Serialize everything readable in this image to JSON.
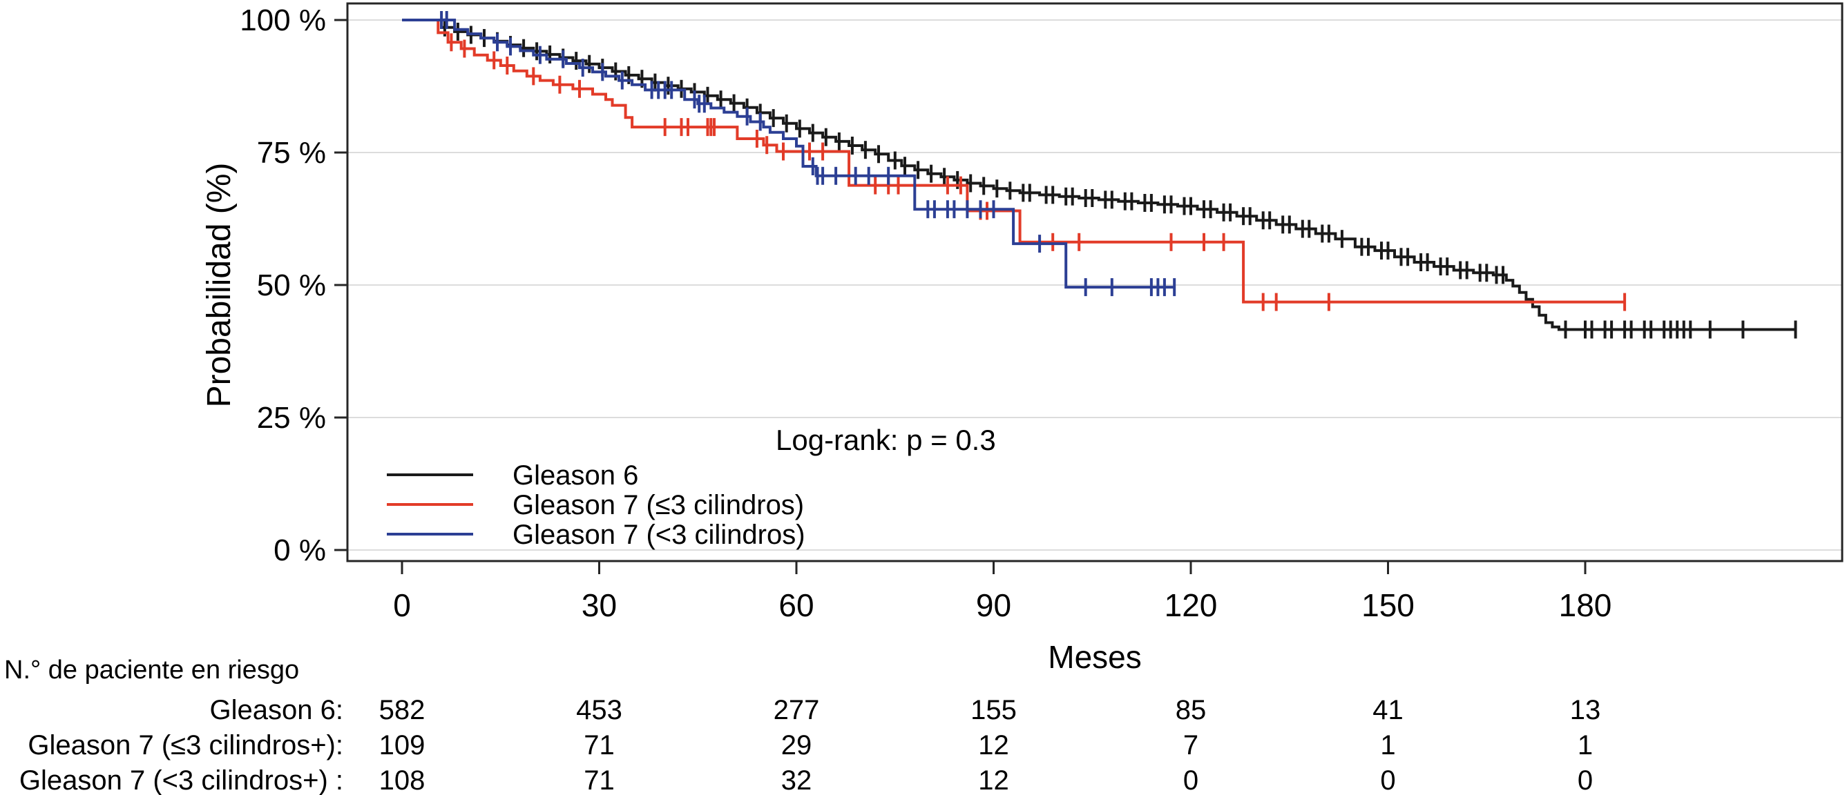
{
  "chart_data": {
    "type": "line",
    "subtype": "kaplan-meier-step-curves",
    "title": "",
    "xlabel": "Meses",
    "ylabel": "Probabilidad (%)",
    "annotation": "Log-rank: p = 0.3",
    "xlim": [
      0,
      219
    ],
    "ylim": [
      0,
      100
    ],
    "xticks": [
      0,
      30,
      60,
      90,
      120,
      150,
      180
    ],
    "xtick_labels": [
      "0",
      "30",
      "60",
      "90",
      "120",
      "150",
      "180"
    ],
    "yticks": [
      0,
      25,
      50,
      75,
      100
    ],
    "ytick_labels": [
      "0 %",
      "25 %",
      "50 %",
      "75 %",
      "100 %"
    ],
    "grid": "horizontal",
    "grid_color": "#dcdcdc",
    "axis_color": "#262626",
    "legend_position": "inside-bottom-left",
    "series": [
      {
        "name": "Gleason 6",
        "color": "#1a1a1a",
        "steps": [
          [
            0,
            100
          ],
          [
            6,
            98.6
          ],
          [
            8,
            97.8
          ],
          [
            10,
            97.2
          ],
          [
            12,
            96.6
          ],
          [
            14,
            96.0
          ],
          [
            16,
            95.3
          ],
          [
            18,
            94.7
          ],
          [
            20,
            94.1
          ],
          [
            22,
            93.5
          ],
          [
            24,
            92.9
          ],
          [
            26,
            92.3
          ],
          [
            28,
            91.7
          ],
          [
            30,
            91.0
          ],
          [
            32,
            90.3
          ],
          [
            34,
            89.6
          ],
          [
            36,
            88.9
          ],
          [
            38,
            88.2
          ],
          [
            40,
            87.6
          ],
          [
            42,
            87.0
          ],
          [
            44,
            86.4
          ],
          [
            46,
            85.7
          ],
          [
            48,
            85.0
          ],
          [
            50,
            84.3
          ],
          [
            52,
            83.5
          ],
          [
            54,
            82.5
          ],
          [
            56,
            81.5
          ],
          [
            58,
            80.5
          ],
          [
            60,
            79.5
          ],
          [
            62,
            78.7
          ],
          [
            64,
            77.9
          ],
          [
            66,
            77.1
          ],
          [
            68,
            76.3
          ],
          [
            70,
            75.5
          ],
          [
            72,
            74.7
          ],
          [
            74,
            73.5
          ],
          [
            76,
            72.5
          ],
          [
            78,
            71.7
          ],
          [
            80,
            71.0
          ],
          [
            82,
            70.4
          ],
          [
            84,
            69.8
          ],
          [
            86,
            69.2
          ],
          [
            88,
            68.7
          ],
          [
            90,
            68.2
          ],
          [
            92,
            67.8
          ],
          [
            94,
            67.4
          ],
          [
            97,
            67.0
          ],
          [
            100,
            66.7
          ],
          [
            103,
            66.4
          ],
          [
            106,
            66.1
          ],
          [
            109,
            65.8
          ],
          [
            112,
            65.5
          ],
          [
            115,
            65.2
          ],
          [
            118,
            64.9
          ],
          [
            121,
            64.3
          ],
          [
            124,
            63.7
          ],
          [
            127,
            63.0
          ],
          [
            130,
            62.2
          ],
          [
            133,
            61.4
          ],
          [
            136,
            60.6
          ],
          [
            139,
            59.7
          ],
          [
            142,
            58.7
          ],
          [
            145,
            57.2
          ],
          [
            148,
            56.5
          ],
          [
            151,
            55.3
          ],
          [
            154,
            54.3
          ],
          [
            157,
            53.5
          ],
          [
            160,
            52.8
          ],
          [
            163,
            52.3
          ],
          [
            166,
            51.9
          ],
          [
            168,
            50.9
          ],
          [
            169,
            49.8
          ],
          [
            170,
            48.6
          ],
          [
            171,
            47.3
          ],
          [
            172,
            45.9
          ],
          [
            173,
            44.3
          ],
          [
            174,
            42.9
          ],
          [
            175,
            42.1
          ],
          [
            176,
            41.6
          ]
        ],
        "end": 212,
        "censors": [
          6.5,
          8.5,
          10.5,
          12.5,
          14.5,
          16.5,
          18.5,
          20.5,
          22.5,
          24.5,
          26.5,
          28.5,
          30.5,
          32.5,
          34.5,
          36.5,
          38.5,
          40.5,
          42.5,
          44.5,
          46.5,
          48.5,
          50.5,
          52.5,
          54.5,
          56.5,
          58.5,
          60.5,
          62.5,
          64.5,
          66.5,
          68.5,
          70.5,
          72.5,
          75,
          76.5,
          78.5,
          80.5,
          82.5,
          84.5,
          86.5,
          88.5,
          90.5,
          92.5,
          94.5,
          95.5,
          98,
          99,
          101,
          102,
          104,
          105,
          107,
          108,
          110,
          111,
          113,
          114,
          116,
          117,
          119,
          120,
          122,
          123,
          125,
          126,
          128,
          129,
          131,
          132,
          134,
          135,
          137,
          138,
          140,
          141,
          143,
          146,
          147,
          149,
          150,
          152,
          153,
          155,
          156,
          158,
          159,
          161,
          162,
          164,
          165,
          166.5,
          167.5,
          177,
          180,
          181,
          183,
          184,
          186,
          187,
          189,
          190,
          192,
          193,
          194,
          195,
          196,
          199,
          204,
          212
        ]
      },
      {
        "name": "Gleason 7 (≤3 cilindros)",
        "color": "#e23b28",
        "steps": [
          [
            0,
            100
          ],
          [
            5.5,
            97.6
          ],
          [
            7,
            95.8
          ],
          [
            9,
            94.6
          ],
          [
            11,
            93.4
          ],
          [
            13,
            92.4
          ],
          [
            15,
            91.4
          ],
          [
            17,
            90.4
          ],
          [
            19,
            89.4
          ],
          [
            21,
            88.6
          ],
          [
            23,
            87.8
          ],
          [
            26,
            87.0
          ],
          [
            29,
            86.0
          ],
          [
            31,
            85.0
          ],
          [
            32,
            83.9
          ],
          [
            34,
            81.6
          ],
          [
            35,
            79.8
          ],
          [
            51,
            77.6
          ],
          [
            55,
            76.4
          ],
          [
            57,
            75.2
          ],
          [
            68,
            68.8
          ],
          [
            86,
            64.0
          ],
          [
            94,
            58.1
          ],
          [
            128,
            46.8
          ]
        ],
        "end": 186,
        "censors": [
          7.5,
          9.5,
          14,
          16,
          20,
          24,
          27,
          40,
          42.5,
          43.5,
          46.5,
          47,
          47.5,
          54,
          55.5,
          58,
          62,
          64,
          72,
          74,
          75.5,
          83,
          85,
          88,
          89,
          99,
          103,
          117,
          122,
          125,
          131,
          133,
          141,
          186
        ]
      },
      {
        "name": "Gleason 7 (<3 cilindros)",
        "color": "#2c3f94",
        "steps": [
          [
            0,
            100
          ],
          [
            8,
            98.2
          ],
          [
            10,
            97.4
          ],
          [
            12,
            96.6
          ],
          [
            14,
            95.8
          ],
          [
            16,
            95.0
          ],
          [
            18,
            94.2
          ],
          [
            20,
            93.4
          ],
          [
            22,
            92.6
          ],
          [
            25,
            91.8
          ],
          [
            27,
            91.0
          ],
          [
            29,
            90.2
          ],
          [
            31,
            89.4
          ],
          [
            33,
            88.6
          ],
          [
            35,
            87.8
          ],
          [
            37,
            86.8
          ],
          [
            43,
            85.0
          ],
          [
            45,
            84.2
          ],
          [
            47,
            83.4
          ],
          [
            49,
            82.6
          ],
          [
            51,
            81.8
          ],
          [
            53,
            80.8
          ],
          [
            55,
            79.8
          ],
          [
            56,
            78.8
          ],
          [
            58,
            77.6
          ],
          [
            60,
            76.2
          ],
          [
            61,
            72.4
          ],
          [
            63,
            70.6
          ],
          [
            78,
            64.3
          ],
          [
            93,
            57.8
          ],
          [
            101,
            49.6
          ]
        ],
        "end": 117.5,
        "censors": [
          6,
          6.8,
          14.5,
          16.5,
          21,
          24.5,
          27.5,
          30.5,
          33.5,
          38,
          39,
          40,
          41,
          44.5,
          45.2,
          46,
          52.5,
          54.5,
          62.5,
          63.2,
          64,
          66,
          69,
          71,
          74,
          80,
          81,
          83,
          84,
          86,
          88,
          90,
          97,
          104,
          108,
          114,
          115,
          116,
          117.5
        ]
      }
    ],
    "risk_table": {
      "header": "N.° de paciente en riesgo",
      "times": [
        0,
        30,
        60,
        90,
        120,
        150,
        180
      ],
      "rows": [
        {
          "label": "Gleason 6:",
          "color": "#0a0a0a",
          "values": [
            "582",
            "453",
            "277",
            "155",
            "85",
            "41",
            "13"
          ]
        },
        {
          "label": "Gleason 7 (≤3 cilindros+):",
          "color": "#d9532e",
          "values": [
            "109",
            "71",
            "29",
            "12",
            "7",
            "1",
            "1"
          ]
        },
        {
          "label": "Gleason 7 (<3 cilindros+) :",
          "color": "#4a63a8",
          "values": [
            "108",
            "71",
            "32",
            "12",
            "0",
            "0",
            "0"
          ]
        }
      ]
    }
  }
}
